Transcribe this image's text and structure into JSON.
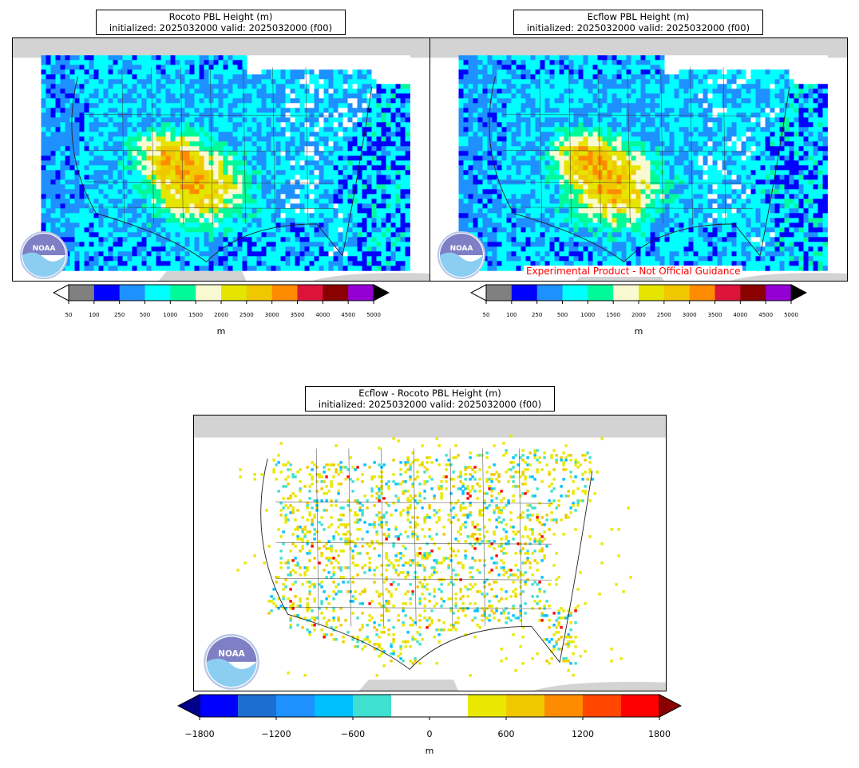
{
  "panels": {
    "rocoto": {
      "title_line1": "Rocoto PBL Height (m)",
      "title_line2": "initialized: 2025032000 valid: 2025032000 (f00)"
    },
    "ecflow": {
      "title_line1": "Ecflow PBL Height (m)",
      "title_line2": "initialized: 2025032000 valid: 2025032000 (f00)"
    },
    "diff": {
      "title_line1": "Ecflow - Rocoto PBL Height (m)",
      "title_line2": "initialized: 2025032000 valid: 2025032000 (f00)"
    }
  },
  "experimental_label": "Experimental Product - Not Official Guidance",
  "logo_text": "NOAA",
  "pbl_colorbar": {
    "unit": "m",
    "ticks": [
      "50",
      "100",
      "250",
      "500",
      "1000",
      "1500",
      "2000",
      "2500",
      "3000",
      "3500",
      "4000",
      "4500",
      "5000"
    ],
    "colors": [
      "#808080",
      "#0000ff",
      "#1e90ff",
      "#00ffff",
      "#00fa9a",
      "#fafad2",
      "#e5e500",
      "#f0c800",
      "#ff8c00",
      "#dc143c",
      "#8b0000",
      "#9400d3"
    ],
    "under_color": "#ffffff",
    "over_color": "#000000"
  },
  "diff_colorbar": {
    "unit": "m",
    "ticks": [
      "−1800",
      "−1200",
      "−600",
      "0",
      "600",
      "1200",
      "1800"
    ],
    "colors": [
      "#0000ff",
      "#1c6ed0",
      "#1e90ff",
      "#00bfff",
      "#40e0d0",
      "#ffffff",
      "#ffffff",
      "#e8e800",
      "#f0c800",
      "#ff8c00",
      "#ff4500",
      "#ff0000"
    ],
    "under_color": "#00008b",
    "over_color": "#8b0000"
  }
}
